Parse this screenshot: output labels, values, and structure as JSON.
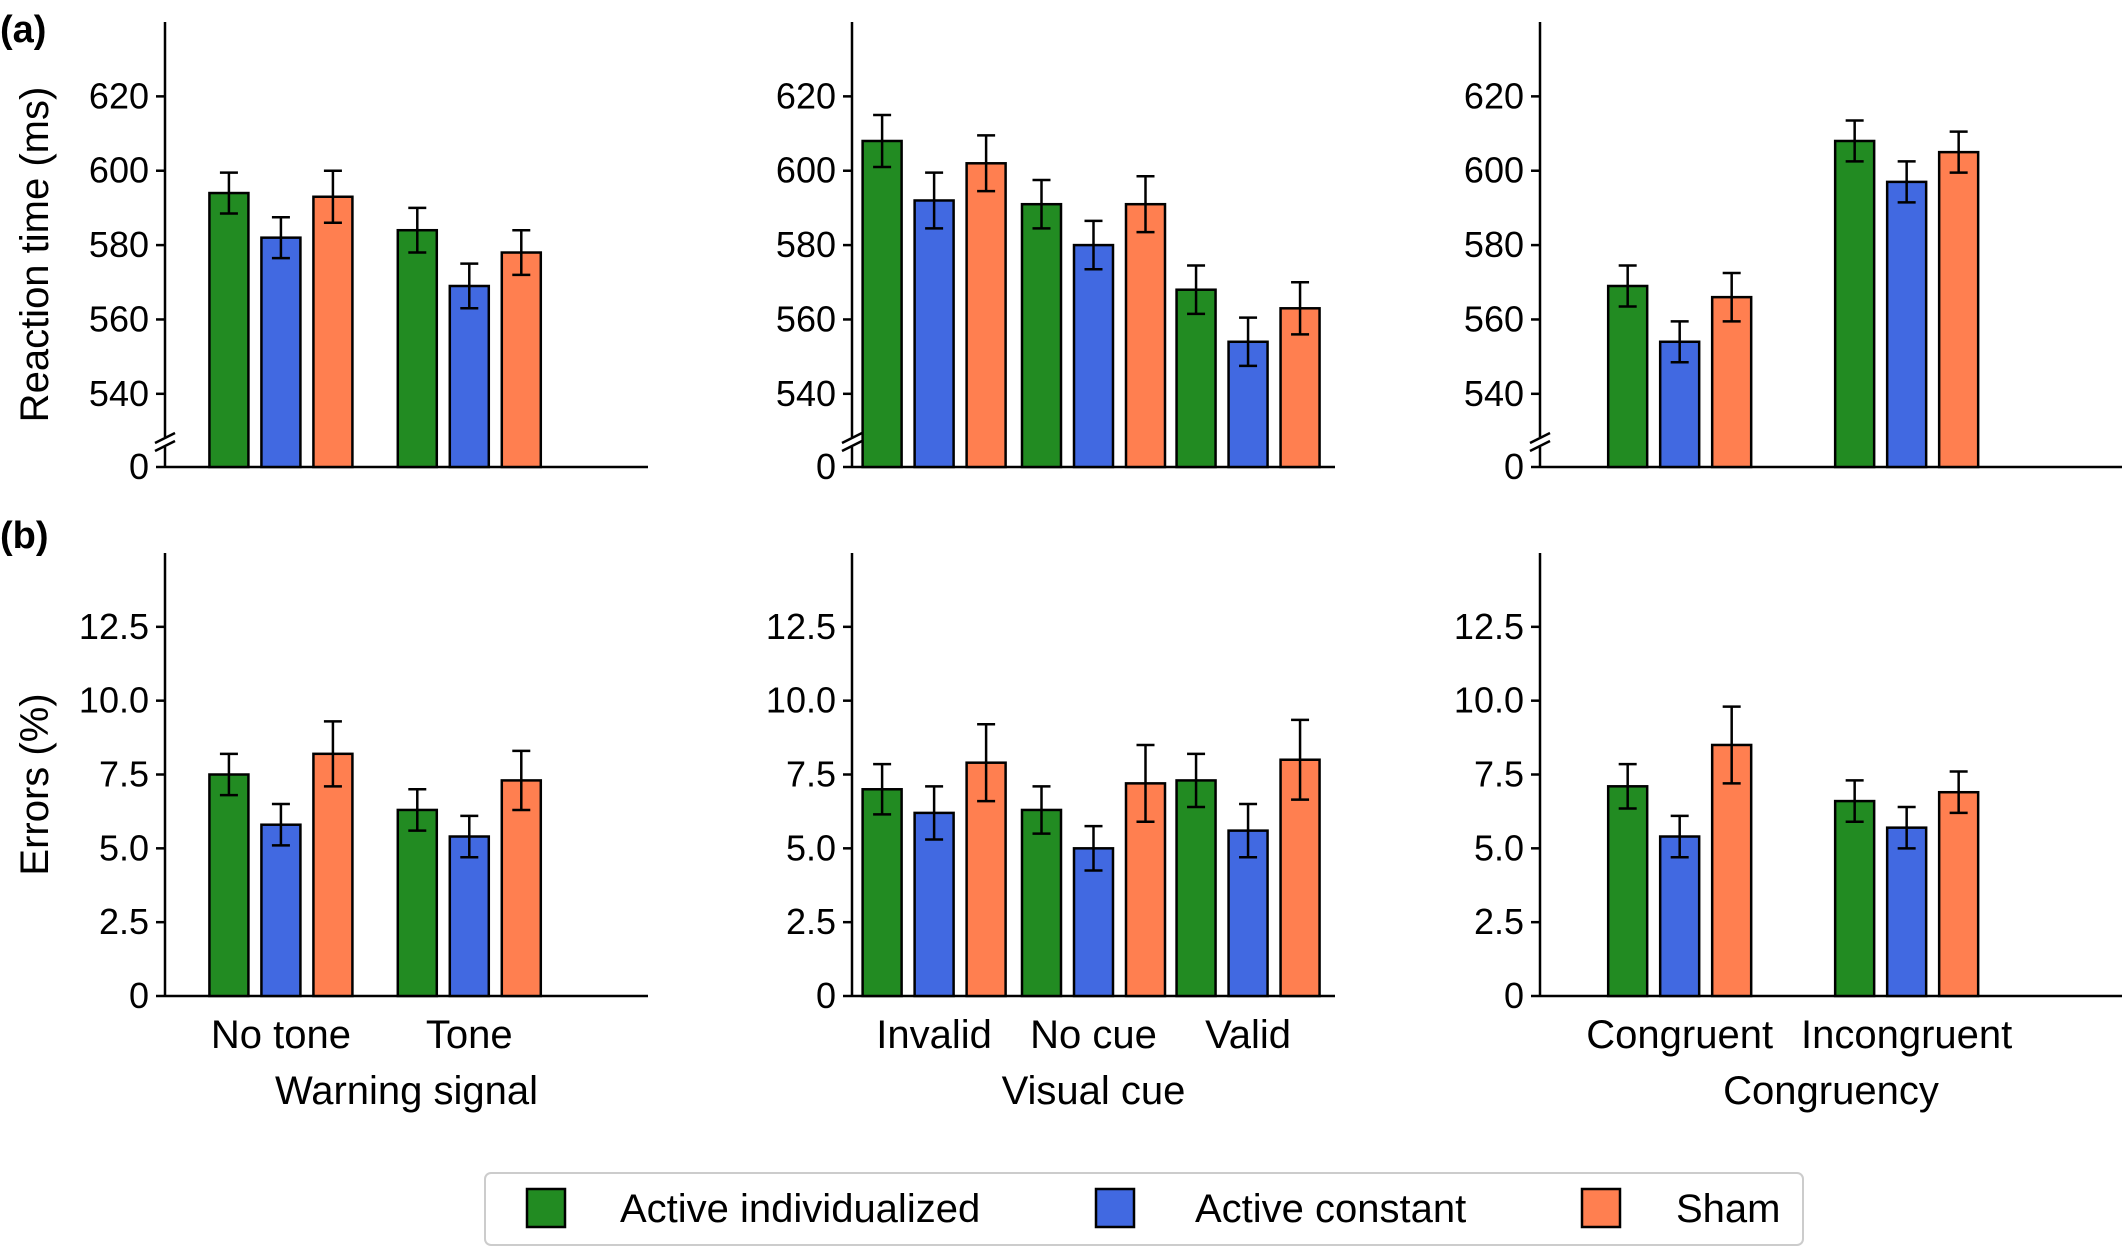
{
  "panel_labels": {
    "a": "(a)",
    "b": "(b)"
  },
  "legend": {
    "placement": "bottom-center",
    "entries": [
      {
        "name": "Active individualized",
        "color": "#228B22"
      },
      {
        "name": "Active constant",
        "color": "#4169E1"
      },
      {
        "name": "Sham",
        "color": "#FF7F50"
      }
    ]
  },
  "chart_data": [
    {
      "type": "bar",
      "row": "a",
      "ylabel": "Reaction time (ms)",
      "xlabel": "",
      "categories": [
        "No tone",
        "Tone"
      ],
      "ylim": [
        0,
        640
      ],
      "broken_axis": [
        0,
        530
      ],
      "yticks": [
        0,
        540,
        560,
        580,
        600,
        620
      ],
      "series": [
        {
          "name": "Active individualized",
          "values": [
            594,
            584
          ],
          "errors": [
            5.5,
            6
          ]
        },
        {
          "name": "Active constant",
          "values": [
            582,
            569
          ],
          "errors": [
            5.5,
            6
          ]
        },
        {
          "name": "Sham",
          "values": [
            593,
            578
          ],
          "errors": [
            7,
            6
          ]
        }
      ]
    },
    {
      "type": "bar",
      "row": "a",
      "ylabel": "",
      "xlabel": "",
      "categories": [
        "Invalid",
        "No cue",
        "Valid"
      ],
      "ylim": [
        0,
        640
      ],
      "broken_axis": [
        0,
        530
      ],
      "yticks": [
        0,
        540,
        560,
        580,
        600,
        620
      ],
      "series": [
        {
          "name": "Active individualized",
          "values": [
            608,
            591,
            568
          ],
          "errors": [
            7,
            6.5,
            6.5
          ]
        },
        {
          "name": "Active constant",
          "values": [
            592,
            580,
            554
          ],
          "errors": [
            7.5,
            6.5,
            6.5
          ]
        },
        {
          "name": "Sham",
          "values": [
            602,
            591,
            563
          ],
          "errors": [
            7.5,
            7.5,
            7
          ]
        }
      ]
    },
    {
      "type": "bar",
      "row": "a",
      "ylabel": "",
      "xlabel": "",
      "categories": [
        "Congruent",
        "Incongruent"
      ],
      "ylim": [
        0,
        640
      ],
      "broken_axis": [
        0,
        530
      ],
      "yticks": [
        0,
        540,
        560,
        580,
        600,
        620
      ],
      "series": [
        {
          "name": "Active individualized",
          "values": [
            569,
            608
          ],
          "errors": [
            5.5,
            5.5
          ]
        },
        {
          "name": "Active constant",
          "values": [
            554,
            597
          ],
          "errors": [
            5.5,
            5.5
          ]
        },
        {
          "name": "Sham",
          "values": [
            566,
            605
          ],
          "errors": [
            6.5,
            5.5
          ]
        }
      ]
    },
    {
      "type": "bar",
      "row": "b",
      "ylabel": "Errors (%)",
      "xlabel": "Warning signal",
      "categories": [
        "No tone",
        "Tone"
      ],
      "ylim": [
        0,
        15
      ],
      "yticks": [
        "0",
        "2.5",
        "5.0",
        "7.5",
        "10.0",
        "12.5"
      ],
      "series": [
        {
          "name": "Active individualized",
          "values": [
            7.5,
            6.3
          ],
          "errors": [
            0.7,
            0.7
          ]
        },
        {
          "name": "Active constant",
          "values": [
            5.8,
            5.4
          ],
          "errors": [
            0.7,
            0.7
          ]
        },
        {
          "name": "Sham",
          "values": [
            8.2,
            7.3
          ],
          "errors": [
            1.1,
            1.0
          ]
        }
      ]
    },
    {
      "type": "bar",
      "row": "b",
      "ylabel": "",
      "xlabel": "Visual cue",
      "categories": [
        "Invalid",
        "No cue",
        "Valid"
      ],
      "ylim": [
        0,
        15
      ],
      "yticks": [
        "0",
        "2.5",
        "5.0",
        "7.5",
        "10.0",
        "12.5"
      ],
      "series": [
        {
          "name": "Active individualized",
          "values": [
            7.0,
            6.3,
            7.3
          ],
          "errors": [
            0.85,
            0.8,
            0.9
          ]
        },
        {
          "name": "Active constant",
          "values": [
            6.2,
            5.0,
            5.6
          ],
          "errors": [
            0.9,
            0.75,
            0.9
          ]
        },
        {
          "name": "Sham",
          "values": [
            7.9,
            7.2,
            8.0
          ],
          "errors": [
            1.3,
            1.3,
            1.35
          ]
        }
      ]
    },
    {
      "type": "bar",
      "row": "b",
      "ylabel": "",
      "xlabel": "Congruency",
      "categories": [
        "Congruent",
        "Incongruent"
      ],
      "ylim": [
        0,
        15
      ],
      "yticks": [
        "0",
        "2.5",
        "5.0",
        "7.5",
        "10.0",
        "12.5"
      ],
      "series": [
        {
          "name": "Active individualized",
          "values": [
            7.1,
            6.6
          ],
          "errors": [
            0.75,
            0.7
          ]
        },
        {
          "name": "Active constant",
          "values": [
            5.4,
            5.7
          ],
          "errors": [
            0.7,
            0.7
          ]
        },
        {
          "name": "Sham",
          "values": [
            8.5,
            6.9
          ],
          "errors": [
            1.3,
            0.7
          ]
        }
      ]
    }
  ]
}
